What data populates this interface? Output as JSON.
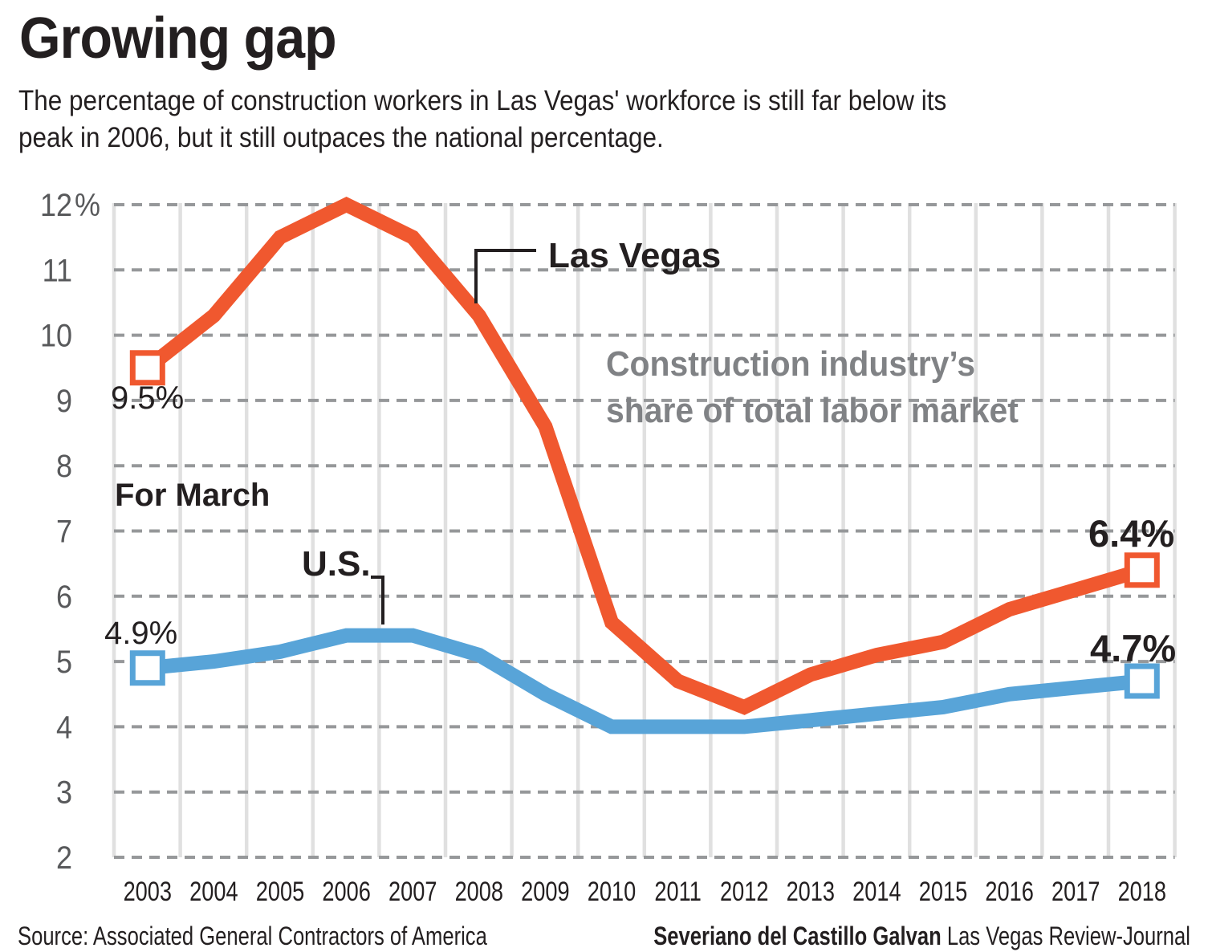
{
  "header": {
    "title": "Growing gap",
    "subtitle_lines": [
      "The percentage of construction workers in Las Vegas' workforce is still far below its",
      "peak in 2006, but it still outpaces the national percentage."
    ]
  },
  "chart_data": {
    "type": "line",
    "title": "Growing gap",
    "note": "For March",
    "categories": [
      "2003",
      "2004",
      "2005",
      "2006",
      "2007",
      "2008",
      "2009",
      "2010",
      "2011",
      "2012",
      "2013",
      "2014",
      "2015",
      "2016",
      "2017",
      "2018"
    ],
    "series": [
      {
        "name": "Las Vegas",
        "color": "#F0582F",
        "values": [
          9.5,
          10.3,
          11.5,
          12.0,
          11.5,
          10.3,
          8.6,
          5.6,
          4.7,
          4.3,
          4.8,
          5.1,
          5.3,
          5.8,
          6.1,
          6.4
        ],
        "start_label": "9.5%",
        "end_label": "6.4%"
      },
      {
        "name": "U.S.",
        "color": "#58A4D8",
        "values": [
          4.9,
          5.0,
          5.15,
          5.4,
          5.4,
          5.1,
          4.5,
          4.0,
          4.0,
          4.0,
          4.1,
          4.2,
          4.3,
          4.5,
          4.6,
          4.7
        ],
        "start_label": "4.9%",
        "end_label": "4.7%"
      }
    ],
    "ylim": [
      2,
      12
    ],
    "y_ticks": [
      {
        "label": "12%",
        "value": 12
      },
      {
        "label": "11",
        "value": 11
      },
      {
        "label": "10",
        "value": 10
      },
      {
        "label": "9",
        "value": 9
      },
      {
        "label": "8",
        "value": 8
      },
      {
        "label": "7",
        "value": 7
      },
      {
        "label": "6",
        "value": 6
      },
      {
        "label": "5",
        "value": 5
      },
      {
        "label": "4",
        "value": 4
      },
      {
        "label": "3",
        "value": 3
      },
      {
        "label": "2",
        "value": 2
      }
    ],
    "grid": {
      "horizontal": "dashed",
      "vertical": "solid"
    },
    "legend_position": "inline-callouts",
    "colors": {
      "las_vegas": "#F0582F",
      "us": "#58A4D8",
      "dashed_grid": "#96989A",
      "vertical_grid": "#E0E0E0",
      "axis_text": "#58595B",
      "ink": "#231F20",
      "context_text": "#808285"
    }
  },
  "annotations": {
    "for_march": "For March",
    "las_vegas": "Las Vegas",
    "us": "U.S.",
    "context_lines": [
      "Construction industry’s",
      "share of total labor market"
    ],
    "lv_start": "9.5%",
    "us_start": "4.9%",
    "lv_end": "6.4%",
    "us_end": "4.7%"
  },
  "footer": {
    "source": "Source: Associated General Contractors of America",
    "credit_name": "Severiano del Castillo Galvan",
    "credit_org": "Las Vegas Review-Journal"
  }
}
